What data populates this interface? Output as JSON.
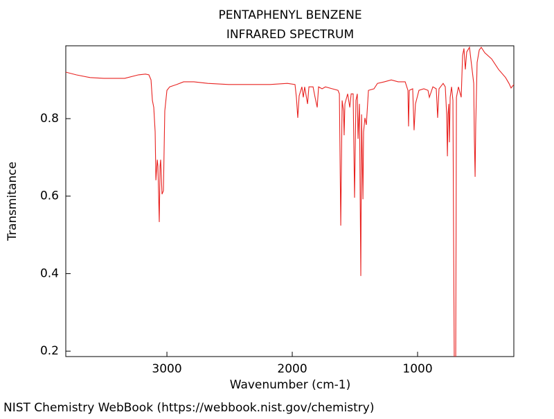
{
  "chart_data": {
    "type": "line",
    "title": "PENTAPHENYL BENZENE",
    "subtitle": "INFRARED SPECTRUM",
    "x_label": "Wavenumber (cm-1)",
    "y_label": "Transmitance",
    "source": "NIST Chemistry WebBook (https://webbook.nist.gov/chemistry)",
    "color": "#e8211f",
    "xlim": [
      3807,
      232
    ],
    "ylim": [
      0.186,
      0.988
    ],
    "xticks": [
      3000,
      2000,
      1000
    ],
    "yticks": [
      0.2,
      0.4,
      0.6,
      0.8
    ],
    "x": [
      3807,
      3724,
      3613,
      3503,
      3337,
      3227,
      3171,
      3144,
      3127,
      3116,
      3105,
      3094,
      3088,
      3077,
      3072,
      3061,
      3055,
      3050,
      3039,
      3028,
      3017,
      3000,
      2978,
      2923,
      2867,
      2785,
      2674,
      2508,
      2343,
      2177,
      2039,
      1978,
      1967,
      1956,
      1945,
      1923,
      1912,
      1901,
      1878,
      1867,
      1834,
      1818,
      1801,
      1790,
      1762,
      1735,
      1680,
      1635,
      1624,
      1613,
      1602,
      1591,
      1586,
      1580,
      1558,
      1541,
      1530,
      1514,
      1503,
      1492,
      1481,
      1475,
      1464,
      1453,
      1447,
      1436,
      1431,
      1420,
      1409,
      1392,
      1348,
      1320,
      1265,
      1210,
      1155,
      1099,
      1077,
      1072,
      1066,
      1039,
      1028,
      1017,
      989,
      950,
      917,
      906,
      878,
      851,
      845,
      840,
      829,
      796,
      779,
      768,
      762,
      757,
      751,
      746,
      740,
      729,
      718,
      707,
      696,
      690,
      674,
      652,
      641,
      630,
      619,
      608,
      586,
      552,
      547,
      541,
      536,
      525,
      508,
      492,
      464,
      409,
      354,
      298,
      271,
      254,
      232
    ],
    "values": [
      0.92,
      0.913,
      0.906,
      0.904,
      0.904,
      0.913,
      0.915,
      0.913,
      0.9,
      0.847,
      0.829,
      0.766,
      0.641,
      0.694,
      0.677,
      0.533,
      0.677,
      0.694,
      0.605,
      0.614,
      0.82,
      0.873,
      0.882,
      0.888,
      0.895,
      0.895,
      0.891,
      0.888,
      0.888,
      0.888,
      0.891,
      0.888,
      0.855,
      0.802,
      0.859,
      0.882,
      0.855,
      0.882,
      0.838,
      0.882,
      0.882,
      0.855,
      0.829,
      0.882,
      0.877,
      0.882,
      0.877,
      0.873,
      0.864,
      0.524,
      0.847,
      0.82,
      0.757,
      0.838,
      0.864,
      0.829,
      0.864,
      0.864,
      0.596,
      0.847,
      0.864,
      0.748,
      0.838,
      0.394,
      0.811,
      0.592,
      0.766,
      0.802,
      0.784,
      0.873,
      0.877,
      0.891,
      0.895,
      0.9,
      0.895,
      0.895,
      0.873,
      0.78,
      0.873,
      0.877,
      0.77,
      0.838,
      0.873,
      0.877,
      0.873,
      0.855,
      0.882,
      0.877,
      0.838,
      0.802,
      0.877,
      0.891,
      0.882,
      0.811,
      0.703,
      0.811,
      0.838,
      0.739,
      0.855,
      0.882,
      0.847,
      0.15,
      0.15,
      0.855,
      0.882,
      0.855,
      0.963,
      0.981,
      0.927,
      0.972,
      0.984,
      0.891,
      0.748,
      0.65,
      0.784,
      0.945,
      0.977,
      0.984,
      0.97,
      0.954,
      0.927,
      0.906,
      0.891,
      0.879,
      0.888
    ]
  }
}
